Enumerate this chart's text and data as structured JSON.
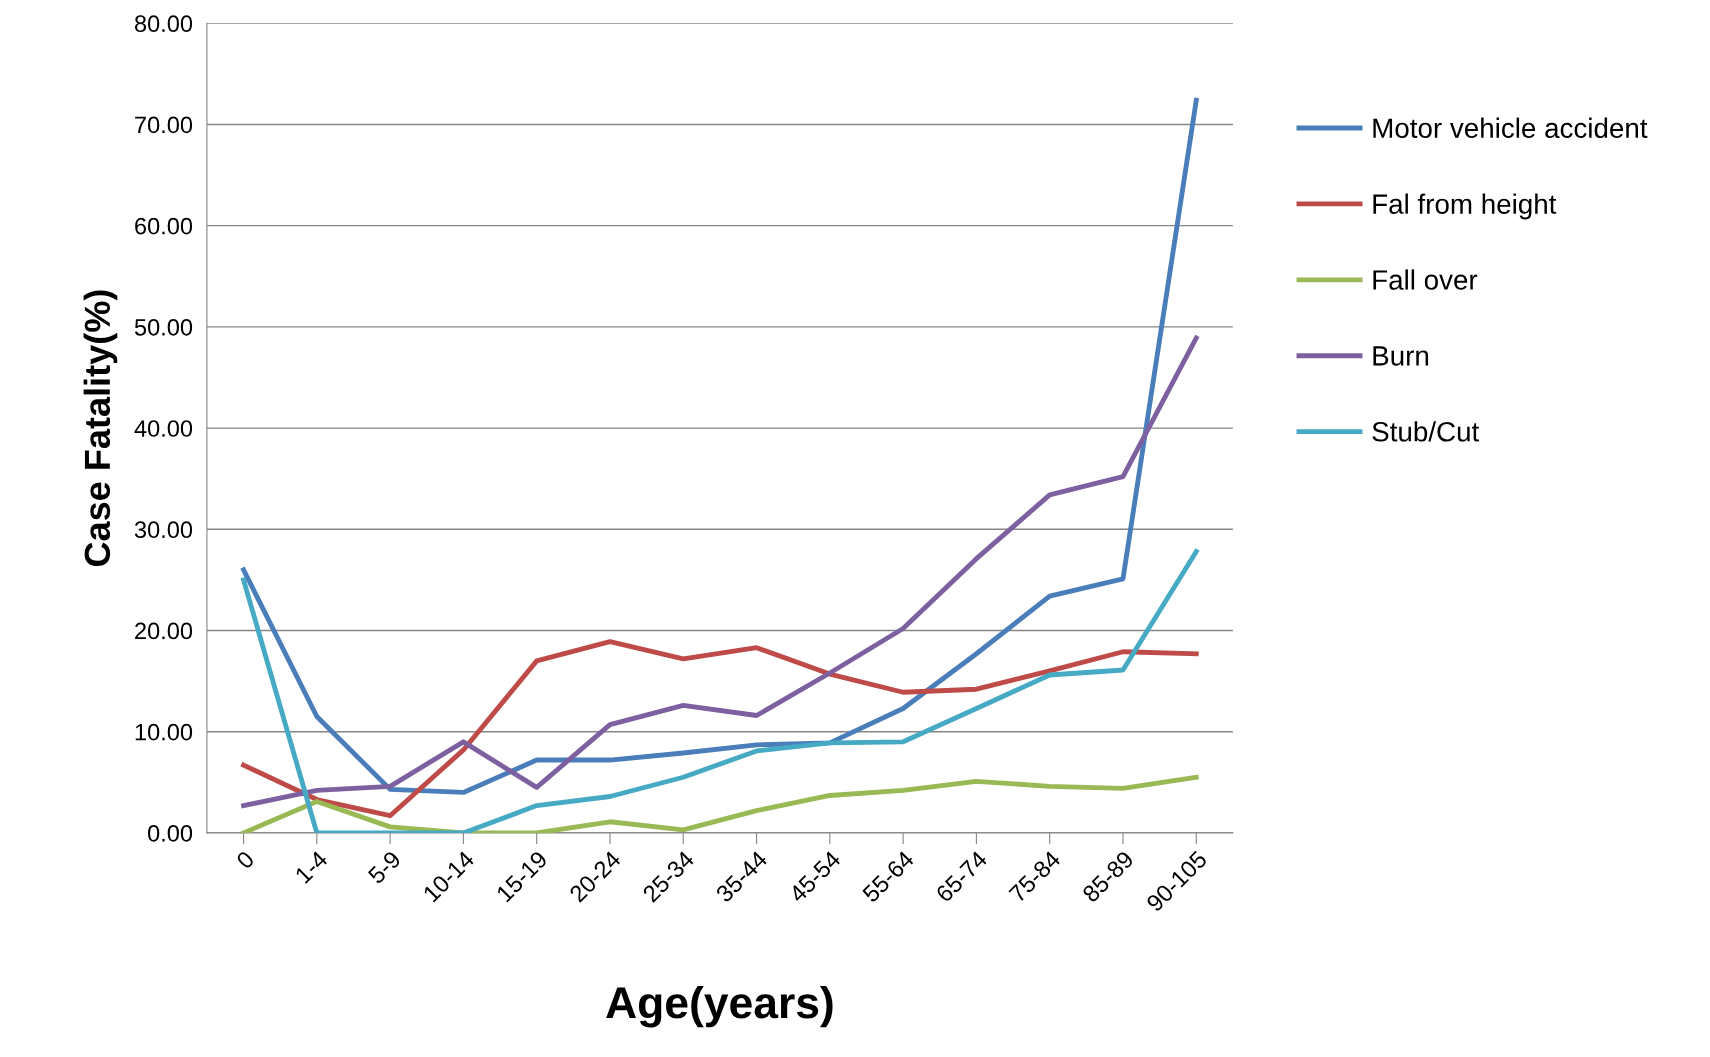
{
  "chart_data": {
    "type": "line",
    "xlabel": "Age(years)",
    "ylabel": "Case Fatality(%)",
    "categories": [
      "0",
      "1-4",
      "5-9",
      "10-14",
      "15-19",
      "20-24",
      "25-34",
      "35-44",
      "45-54",
      "55-64",
      "65-74",
      "75-84",
      "85-89",
      "90-105"
    ],
    "series": [
      {
        "name": "Motor vehicle accident",
        "color": "#4a7ebb",
        "values": [
          26.0,
          11.5,
          4.3,
          4.0,
          7.2,
          7.2,
          7.9,
          8.7,
          8.9,
          12.3,
          17.7,
          23.4,
          25.1,
          72.4
        ]
      },
      {
        "name": "Fal from height",
        "color": "#be4b48",
        "values": [
          6.7,
          3.3,
          1.7,
          8.2,
          17.0,
          18.9,
          17.2,
          18.3,
          15.7,
          13.9,
          14.2,
          16.0,
          17.9,
          17.7
        ]
      },
      {
        "name": "Fall over",
        "color": "#98b954",
        "values": [
          0.0,
          3.1,
          0.6,
          0.0,
          0.0,
          1.1,
          0.3,
          2.2,
          3.7,
          4.2,
          5.1,
          4.6,
          4.4,
          5.5
        ]
      },
      {
        "name": "Burn",
        "color": "#7d60a0",
        "values": [
          2.7,
          4.2,
          4.6,
          9.0,
          4.5,
          10.7,
          12.6,
          11.6,
          15.8,
          20.2,
          27.1,
          33.4,
          35.2,
          48.9
        ]
      },
      {
        "name": "Stub/Cut",
        "color": "#46aac5",
        "values": [
          25.0,
          0.0,
          0.0,
          0.0,
          2.7,
          3.6,
          5.5,
          8.1,
          8.9,
          9.0,
          12.3,
          15.6,
          16.1,
          27.8
        ]
      }
    ],
    "ylim": [
      0,
      80
    ],
    "yticks": [
      {
        "value": 0,
        "label": "0.00"
      },
      {
        "value": 10,
        "label": "10.00"
      },
      {
        "value": 20,
        "label": "20.00"
      },
      {
        "value": 30,
        "label": "30.00"
      },
      {
        "value": 40,
        "label": "40.00"
      },
      {
        "value": 50,
        "label": "50.00"
      },
      {
        "value": 60,
        "label": "60.00"
      },
      {
        "value": 70,
        "label": "70.00"
      },
      {
        "value": 80,
        "label": "80.00"
      }
    ],
    "grid": "y",
    "legend": "right",
    "marker": "none",
    "line_style": "solid"
  }
}
